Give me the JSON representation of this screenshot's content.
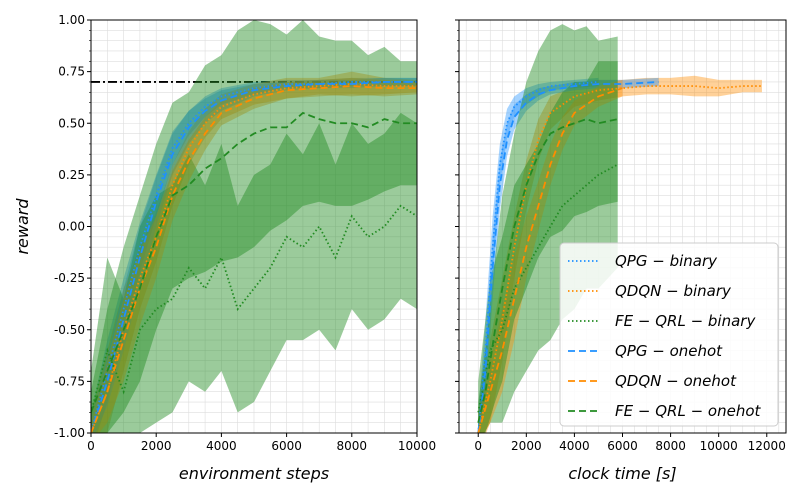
{
  "chart_data": [
    {
      "type": "line",
      "panel": "left",
      "xlabel": "environment steps",
      "ylabel": "reward",
      "xlim": [
        0,
        10000
      ],
      "ylim": [
        -1.0,
        1.0
      ],
      "xticks": [
        "0",
        "2000",
        "4000",
        "6000",
        "8000",
        "10000"
      ],
      "xtick_values": [
        0,
        2000,
        4000,
        6000,
        8000,
        10000
      ],
      "yticks": [
        "1.00",
        "0.75",
        "0.50",
        "0.25",
        "0.00",
        "-0.25",
        "-0.50",
        "-0.75",
        "-1.00"
      ],
      "ytick_values": [
        1.0,
        0.75,
        0.5,
        0.25,
        0.0,
        -0.25,
        -0.5,
        -0.75,
        -1.0
      ],
      "grid": true,
      "reference_line": {
        "y": 0.7,
        "style": "dash-dot",
        "color": "#000000"
      },
      "series": [
        {
          "name": "QPG-binary",
          "style": "dotted",
          "color": "#1e90ff",
          "x": [
            0,
            500,
            1000,
            1500,
            2000,
            2500,
            3000,
            3500,
            4000,
            5000,
            6000,
            7000,
            8000,
            9000,
            10000
          ],
          "values": [
            -1.0,
            -0.7,
            -0.4,
            -0.1,
            0.15,
            0.38,
            0.5,
            0.58,
            0.63,
            0.67,
            0.69,
            0.69,
            0.7,
            0.7,
            0.7
          ],
          "spread": [
            0.1,
            0.15,
            0.15,
            0.12,
            0.1,
            0.08,
            0.06,
            0.05,
            0.04,
            0.03,
            0.02,
            0.02,
            0.02,
            0.02,
            0.02
          ]
        },
        {
          "name": "QDQN-binary",
          "style": "dotted",
          "color": "#ff8c00",
          "x": [
            0,
            500,
            1000,
            1500,
            2000,
            2500,
            3000,
            3500,
            4000,
            5000,
            6000,
            7000,
            8000,
            9000,
            10000
          ],
          "values": [
            -1.0,
            -0.8,
            -0.5,
            -0.25,
            -0.05,
            0.2,
            0.38,
            0.5,
            0.58,
            0.64,
            0.67,
            0.68,
            0.69,
            0.68,
            0.68
          ],
          "spread": [
            0.1,
            0.2,
            0.2,
            0.15,
            0.12,
            0.1,
            0.08,
            0.07,
            0.06,
            0.05,
            0.05,
            0.04,
            0.06,
            0.04,
            0.03
          ]
        },
        {
          "name": "FE-QRL-binary",
          "style": "dotted",
          "color": "#228b22",
          "x": [
            0,
            500,
            1000,
            1500,
            2000,
            2500,
            3000,
            3500,
            4000,
            4500,
            5000,
            5500,
            6000,
            6500,
            7000,
            7500,
            8000,
            8500,
            9000,
            9500,
            10000
          ],
          "values": [
            -0.9,
            -0.6,
            -0.8,
            -0.5,
            -0.4,
            -0.35,
            -0.2,
            -0.3,
            -0.15,
            -0.4,
            -0.3,
            -0.2,
            -0.05,
            -0.1,
            0.0,
            -0.15,
            0.05,
            -0.05,
            0.0,
            0.1,
            0.05
          ],
          "spread": [
            0.2,
            0.45,
            0.45,
            0.5,
            0.55,
            0.55,
            0.55,
            0.5,
            0.55,
            0.5,
            0.55,
            0.5,
            0.5,
            0.45,
            0.5,
            0.45,
            0.45,
            0.45,
            0.45,
            0.45,
            0.45
          ]
        },
        {
          "name": "QPG-onehot",
          "style": "dashed",
          "color": "#1e90ff",
          "x": [
            0,
            500,
            1000,
            1500,
            2000,
            2500,
            3000,
            3500,
            4000,
            5000,
            6000,
            7000,
            8000,
            9000,
            10000
          ],
          "values": [
            -1.0,
            -0.75,
            -0.45,
            -0.15,
            0.12,
            0.35,
            0.48,
            0.56,
            0.61,
            0.66,
            0.68,
            0.69,
            0.69,
            0.7,
            0.7
          ],
          "spread": [
            0.05,
            0.12,
            0.15,
            0.15,
            0.12,
            0.1,
            0.08,
            0.06,
            0.05,
            0.03,
            0.02,
            0.02,
            0.02,
            0.02,
            0.02
          ]
        },
        {
          "name": "QDQN-onehot",
          "style": "dashed",
          "color": "#ff8c00",
          "x": [
            0,
            500,
            1000,
            1500,
            2000,
            2500,
            3000,
            3500,
            4000,
            5000,
            6000,
            7000,
            8000,
            9000,
            10000
          ],
          "values": [
            -1.0,
            -0.8,
            -0.55,
            -0.3,
            -0.1,
            0.15,
            0.32,
            0.45,
            0.55,
            0.62,
            0.66,
            0.67,
            0.68,
            0.67,
            0.67
          ],
          "spread": [
            0.05,
            0.15,
            0.2,
            0.18,
            0.15,
            0.12,
            0.1,
            0.08,
            0.06,
            0.05,
            0.04,
            0.04,
            0.04,
            0.04,
            0.03
          ]
        },
        {
          "name": "FE-QRL-onehot",
          "style": "dashed",
          "color": "#228b22",
          "x": [
            0,
            500,
            1000,
            1500,
            2000,
            2500,
            3000,
            3500,
            4000,
            4500,
            5000,
            5500,
            6000,
            6500,
            7000,
            7500,
            8000,
            8500,
            9000,
            9500,
            10000
          ],
          "values": [
            -0.9,
            -0.7,
            -0.5,
            -0.3,
            -0.05,
            0.15,
            0.2,
            0.28,
            0.33,
            0.4,
            0.45,
            0.48,
            0.48,
            0.55,
            0.52,
            0.5,
            0.5,
            0.48,
            0.52,
            0.5,
            0.5
          ],
          "spread": [
            0.1,
            0.3,
            0.4,
            0.45,
            0.45,
            0.45,
            0.45,
            0.5,
            0.5,
            0.55,
            0.55,
            0.5,
            0.45,
            0.45,
            0.4,
            0.4,
            0.4,
            0.35,
            0.35,
            0.3,
            0.3
          ]
        }
      ]
    },
    {
      "type": "line",
      "panel": "right",
      "xlabel": "clock time [s]",
      "ylabel": "",
      "xlim": [
        -800,
        12800
      ],
      "ylim": [
        -1.0,
        1.0
      ],
      "xticks": [
        "0",
        "2000",
        "4000",
        "6000",
        "8000",
        "10000",
        "12000"
      ],
      "xtick_values": [
        0,
        2000,
        4000,
        6000,
        8000,
        10000,
        12000
      ],
      "grid": true,
      "legend": "lower right",
      "series": [
        {
          "name": "QPG-binary",
          "style": "dotted",
          "color": "#1e90ff",
          "x": [
            0,
            300,
            600,
            900,
            1200,
            1500,
            2000,
            2500,
            3000,
            4000,
            5000
          ],
          "values": [
            -1.0,
            -0.6,
            -0.1,
            0.3,
            0.5,
            0.58,
            0.63,
            0.66,
            0.68,
            0.69,
            0.7
          ],
          "spread": [
            0.1,
            0.15,
            0.15,
            0.1,
            0.07,
            0.05,
            0.04,
            0.03,
            0.02,
            0.02,
            0.02
          ]
        },
        {
          "name": "QDQN-binary",
          "style": "dotted",
          "color": "#ff8c00",
          "x": [
            0,
            500,
            1000,
            1500,
            2000,
            2500,
            3000,
            4000,
            5000,
            6000,
            7000,
            8000,
            9000,
            10000,
            11000,
            11800
          ],
          "values": [
            -1.0,
            -0.75,
            -0.45,
            -0.1,
            0.2,
            0.42,
            0.55,
            0.63,
            0.66,
            0.67,
            0.68,
            0.68,
            0.68,
            0.67,
            0.68,
            0.68
          ],
          "spread": [
            0.1,
            0.2,
            0.2,
            0.15,
            0.12,
            0.1,
            0.08,
            0.05,
            0.05,
            0.04,
            0.04,
            0.04,
            0.05,
            0.04,
            0.03,
            0.03
          ]
        },
        {
          "name": "FE-QRL-binary",
          "style": "dotted",
          "color": "#228b22",
          "x": [
            0,
            500,
            1000,
            1500,
            2000,
            2500,
            3000,
            3500,
            4000,
            4500,
            5000,
            5800
          ],
          "values": [
            -0.9,
            -0.6,
            -0.5,
            -0.3,
            -0.2,
            -0.1,
            0.0,
            0.1,
            0.15,
            0.2,
            0.25,
            0.3
          ],
          "spread": [
            0.15,
            0.35,
            0.45,
            0.5,
            0.5,
            0.5,
            0.55,
            0.55,
            0.55,
            0.5,
            0.55,
            0.5
          ]
        },
        {
          "name": "QPG-onehot",
          "style": "dashed",
          "color": "#1e90ff",
          "x": [
            0,
            300,
            600,
            900,
            1200,
            1500,
            2000,
            2500,
            3000,
            4000,
            5000,
            6000,
            7500
          ],
          "values": [
            -1.0,
            -0.7,
            -0.2,
            0.2,
            0.42,
            0.53,
            0.6,
            0.64,
            0.66,
            0.68,
            0.69,
            0.69,
            0.7
          ],
          "spread": [
            0.05,
            0.12,
            0.15,
            0.12,
            0.08,
            0.06,
            0.04,
            0.03,
            0.02,
            0.02,
            0.02,
            0.02,
            0.02
          ]
        },
        {
          "name": "QDQN-onehot",
          "style": "dashed",
          "color": "#ff8c00",
          "x": [
            0,
            500,
            1000,
            1500,
            2000,
            2500,
            3000,
            3500,
            4000,
            5000,
            6000
          ],
          "values": [
            -1.0,
            -0.8,
            -0.6,
            -0.35,
            -0.1,
            0.1,
            0.3,
            0.45,
            0.55,
            0.63,
            0.67
          ],
          "spread": [
            0.05,
            0.15,
            0.2,
            0.2,
            0.15,
            0.12,
            0.1,
            0.08,
            0.06,
            0.05,
            0.04
          ]
        },
        {
          "name": "FE-QRL-onehot",
          "style": "dashed",
          "color": "#228b22",
          "x": [
            0,
            300,
            700,
            1000,
            1500,
            2000,
            2500,
            3000,
            3500,
            4000,
            4500,
            5000,
            5800
          ],
          "values": [
            -0.95,
            -0.8,
            -0.5,
            -0.3,
            0.0,
            0.2,
            0.35,
            0.45,
            0.48,
            0.5,
            0.52,
            0.5,
            0.52
          ],
          "spread": [
            0.1,
            0.2,
            0.35,
            0.45,
            0.45,
            0.5,
            0.5,
            0.5,
            0.5,
            0.45,
            0.45,
            0.4,
            0.4
          ]
        }
      ]
    }
  ]
}
